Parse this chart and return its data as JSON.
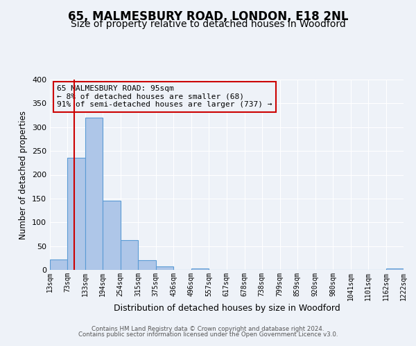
{
  "title": "65, MALMESBURY ROAD, LONDON, E18 2NL",
  "subtitle": "Size of property relative to detached houses in Woodford",
  "xlabel": "Distribution of detached houses by size in Woodford",
  "ylabel": "Number of detached properties",
  "bin_edges": [
    13,
    73,
    133,
    194,
    254,
    315,
    375,
    436,
    496,
    557,
    617,
    678,
    738,
    799,
    859,
    920,
    980,
    1041,
    1101,
    1162,
    1222
  ],
  "bin_labels": [
    "13sqm",
    "73sqm",
    "133sqm",
    "194sqm",
    "254sqm",
    "315sqm",
    "375sqm",
    "436sqm",
    "496sqm",
    "557sqm",
    "617sqm",
    "678sqm",
    "738sqm",
    "799sqm",
    "859sqm",
    "920sqm",
    "980sqm",
    "1041sqm",
    "1101sqm",
    "1162sqm",
    "1222sqm"
  ],
  "bar_heights": [
    22,
    236,
    320,
    145,
    63,
    21,
    7,
    0,
    3,
    0,
    0,
    0,
    0,
    0,
    0,
    0,
    0,
    0,
    0,
    3
  ],
  "bar_color": "#aec6e8",
  "bar_edge_color": "#5b9bd5",
  "vline_x": 95,
  "vline_color": "#cc0000",
  "annotation_text": "65 MALMESBURY ROAD: 95sqm\n← 8% of detached houses are smaller (68)\n91% of semi-detached houses are larger (737) →",
  "annotation_box_color": "#cc0000",
  "ylim": [
    0,
    400
  ],
  "yticks": [
    0,
    50,
    100,
    150,
    200,
    250,
    300,
    350,
    400
  ],
  "footer_line1": "Contains HM Land Registry data © Crown copyright and database right 2024.",
  "footer_line2": "Contains public sector information licensed under the Open Government Licence v3.0.",
  "bg_color": "#eef2f8",
  "grid_color": "#ffffff",
  "title_fontsize": 12,
  "subtitle_fontsize": 10
}
